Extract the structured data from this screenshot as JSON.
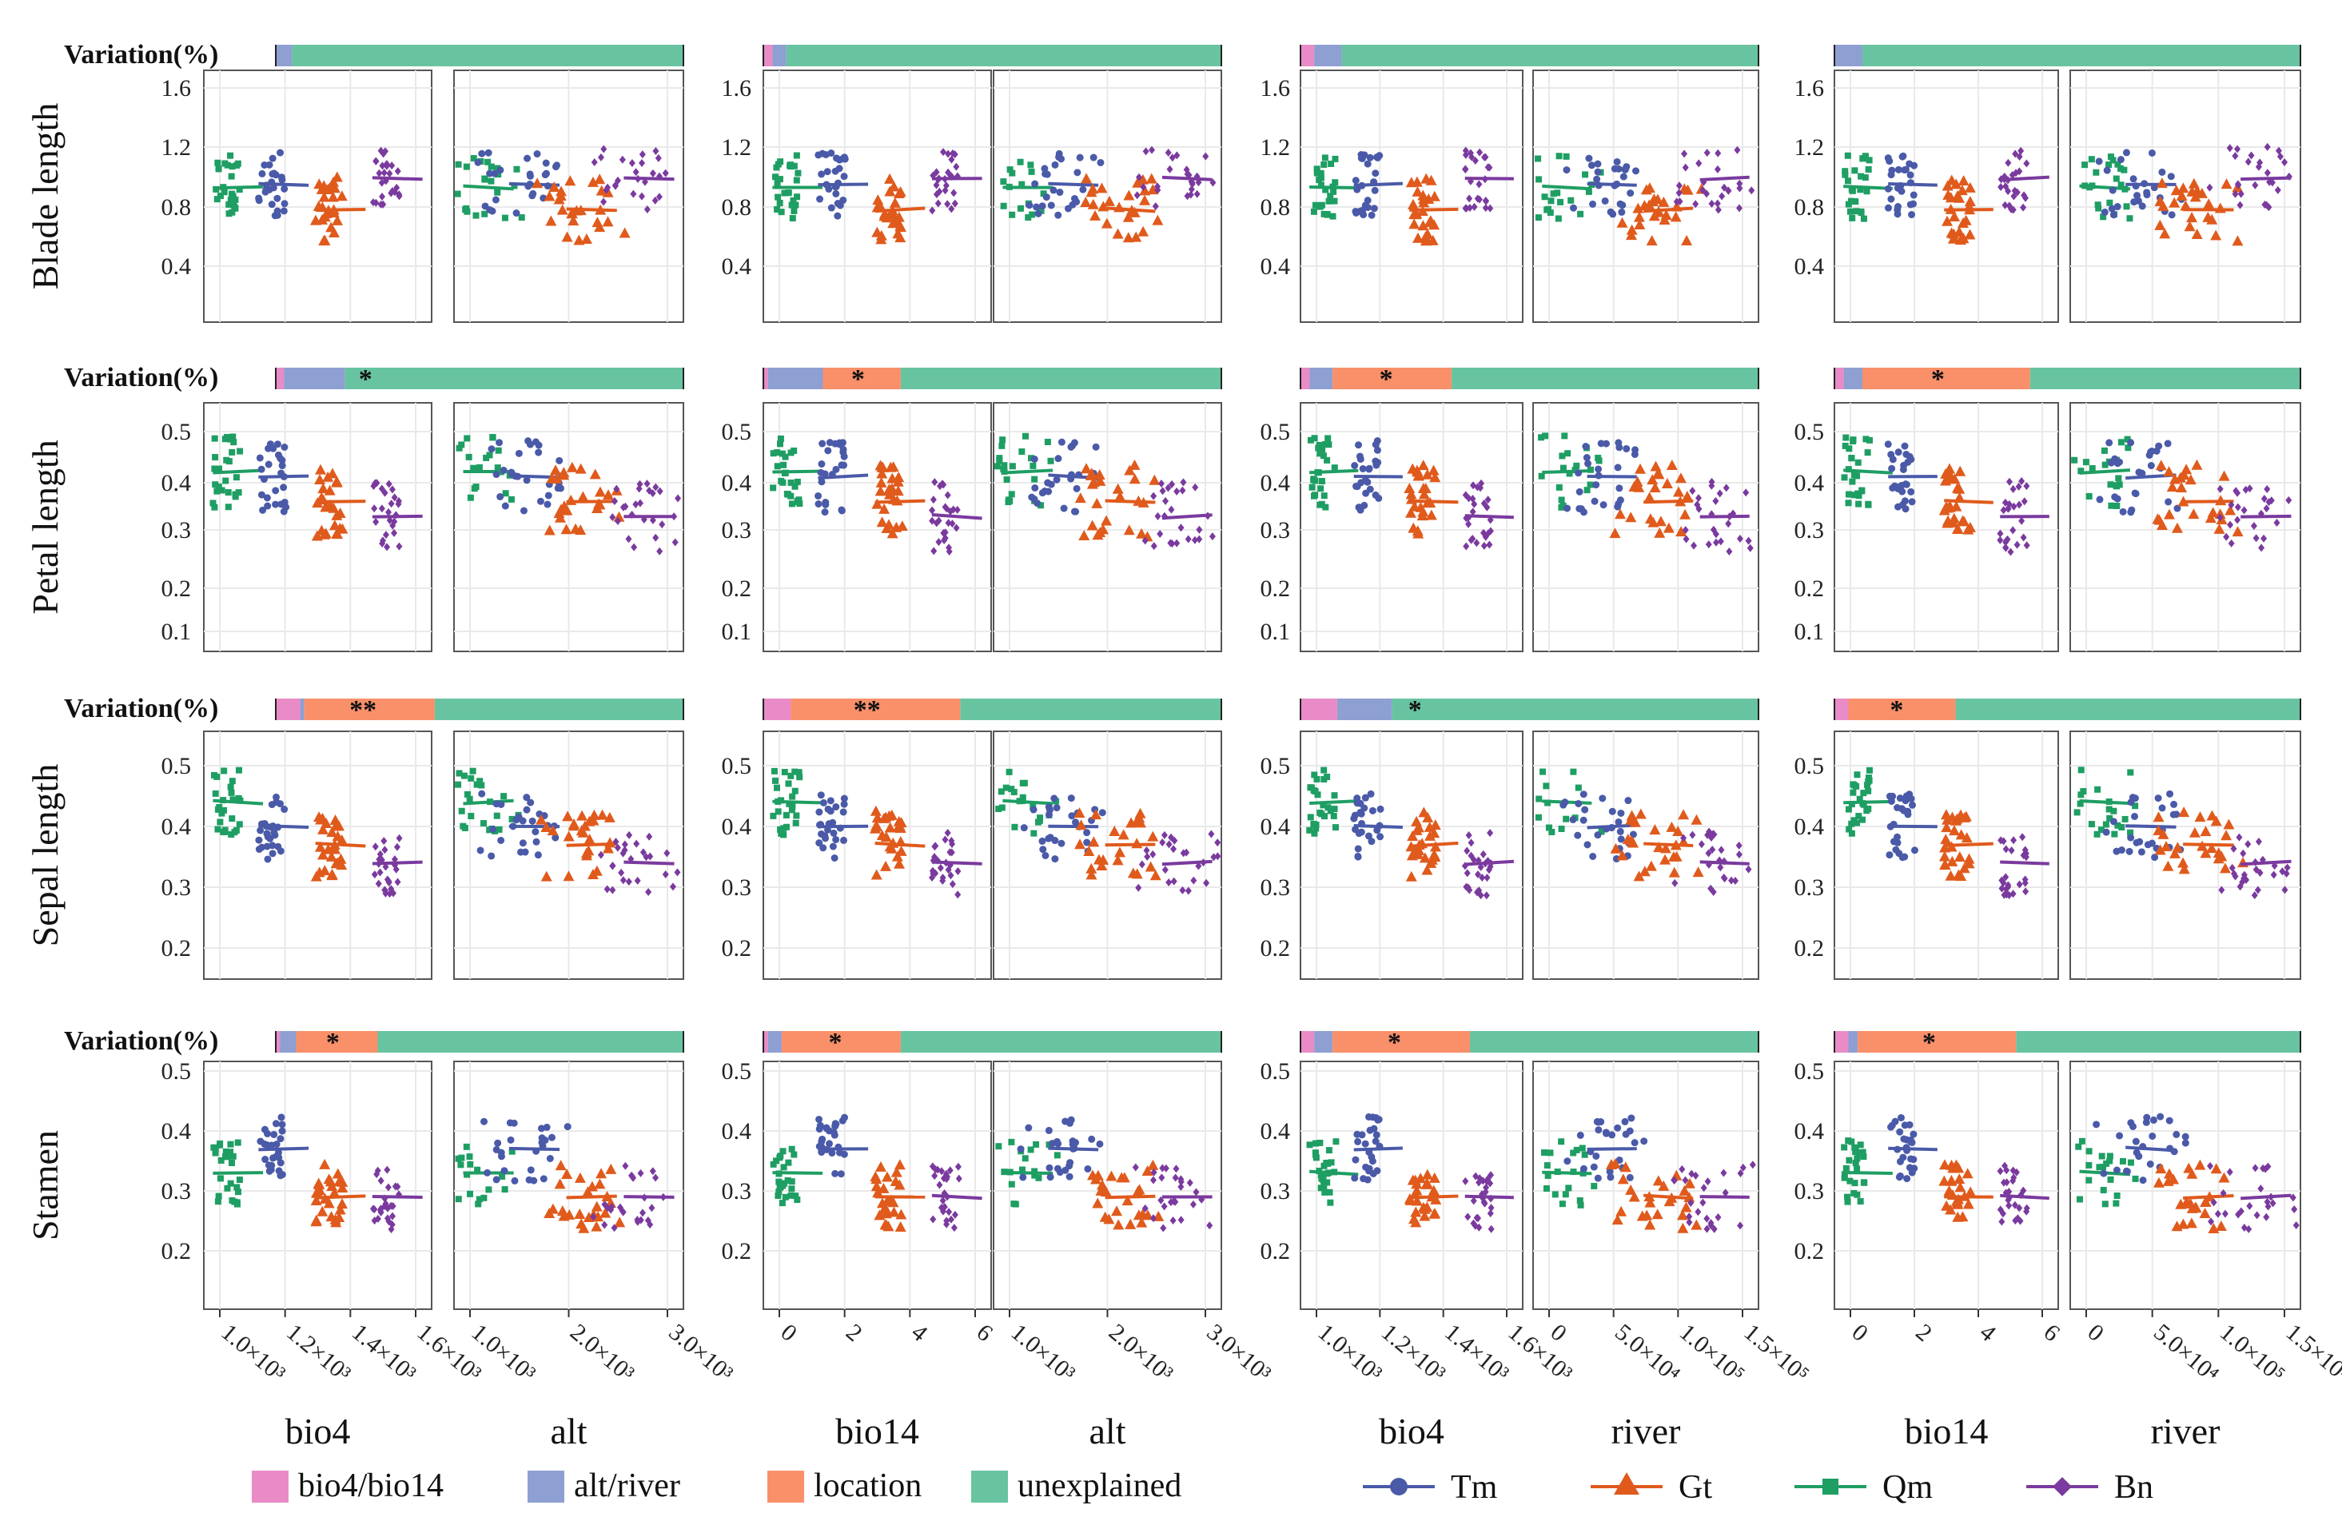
{
  "chart_data": {
    "type": "scatter",
    "title": "",
    "variation_label": "Variation(%)",
    "row_labels": [
      "Blade length",
      "Petal length",
      "Sepal length",
      "Stamen"
    ],
    "row_ticks": [
      [
        "0.4",
        "0.8",
        "1.2",
        "1.6"
      ],
      [
        "0.1",
        "0.2",
        "0.3",
        "0.4",
        "0.5"
      ],
      [
        "0.2",
        "0.3",
        "0.4",
        "0.5"
      ],
      [
        "0.2",
        "0.3",
        "0.4",
        "0.5"
      ]
    ],
    "row_ylim": [
      [
        0.1,
        1.65
      ],
      [
        0.09,
        0.56
      ],
      [
        0.14,
        0.56
      ],
      [
        0.08,
        0.52
      ]
    ],
    "panel_xlabels": [
      "bio4",
      "alt",
      "bio14",
      "alt",
      "bio4",
      "river",
      "bio14",
      "river"
    ],
    "panel_ticks": [
      [
        "1.0×10³",
        "1.2×10³",
        "1.4×10³",
        "1.6×10³"
      ],
      [
        "1.0×10³",
        "2.0×10³",
        "3.0×10³"
      ],
      [
        "0",
        "2",
        "4",
        "6"
      ],
      [
        "1.0×10³",
        "2.0×10³",
        "3.0×10³"
      ],
      [
        "1.0×10³",
        "1.2×10³",
        "1.4×10³",
        "1.6×10³"
      ],
      [
        "0",
        "5.0×10⁴",
        "1.0×10⁵",
        "1.5×10⁵"
      ],
      [
        "0",
        "2",
        "4",
        "6"
      ],
      [
        "0",
        "5.0×10⁴",
        "1.0×10⁵",
        "1.5×10⁵"
      ]
    ],
    "legend_partition": [
      {
        "label": "bio4/bio14",
        "color": "#e98bc6"
      },
      {
        "label": "alt/river",
        "color": "#8e9fd1"
      },
      {
        "label": "location",
        "color": "#f9906a"
      },
      {
        "label": "unexplained",
        "color": "#68c4a0"
      }
    ],
    "legend_species": [
      {
        "name": "Tm",
        "color": "#4a5aa8",
        "marker": "circle"
      },
      {
        "name": "Gt",
        "color": "#e05a1c",
        "marker": "triangle"
      },
      {
        "name": "Qm",
        "color": "#1e9e63",
        "marker": "square"
      },
      {
        "name": "Bn",
        "color": "#7a3a9e",
        "marker": "diamond"
      }
    ],
    "variation_bars": [
      [
        [
          0,
          4,
          0,
          96
        ],
        [
          2,
          3,
          0,
          95
        ],
        [
          3,
          6,
          0,
          91
        ],
        [
          0,
          6,
          0,
          94
        ]
      ],
      [
        [
          2,
          15,
          0,
          83
        ],
        [
          1,
          12,
          17,
          70
        ],
        [
          2,
          5,
          26,
          67
        ],
        [
          2,
          4,
          36,
          58
        ]
      ],
      [
        [
          6,
          1,
          32,
          61
        ],
        [
          6,
          0,
          37,
          57
        ],
        [
          8,
          12,
          0,
          80
        ],
        [
          3,
          0,
          23,
          74
        ]
      ],
      [
        [
          1,
          4,
          20,
          75
        ],
        [
          1,
          3,
          26,
          70
        ],
        [
          3,
          4,
          30,
          63
        ],
        [
          3,
          2,
          34,
          61
        ]
      ]
    ],
    "significance": [
      [
        "",
        "",
        "",
        ""
      ],
      [
        "*",
        "*",
        "*",
        "*"
      ],
      [
        "**",
        "**",
        "*",
        "*"
      ],
      [
        "*",
        "*",
        "*",
        "*"
      ]
    ],
    "series_means": [
      {
        "row": "Blade length",
        "Tm": 0.95,
        "Gt": 0.78,
        "Qm": 0.93,
        "Bn": 0.99
      },
      {
        "row": "Petal length",
        "Tm": 0.41,
        "Gt": 0.36,
        "Qm": 0.42,
        "Bn": 0.33
      },
      {
        "row": "Sepal length",
        "Tm": 0.4,
        "Gt": 0.37,
        "Qm": 0.44,
        "Bn": 0.34
      },
      {
        "row": "Stamen",
        "Tm": 0.37,
        "Gt": 0.29,
        "Qm": 0.33,
        "Bn": 0.29
      }
    ],
    "colors": {
      "Tm": "#4a5aa8",
      "Gt": "#e05a1c",
      "Qm": "#1e9e63",
      "Bn": "#7a3a9e",
      "grid": "#e9e9e9",
      "frame": "#555555"
    }
  }
}
